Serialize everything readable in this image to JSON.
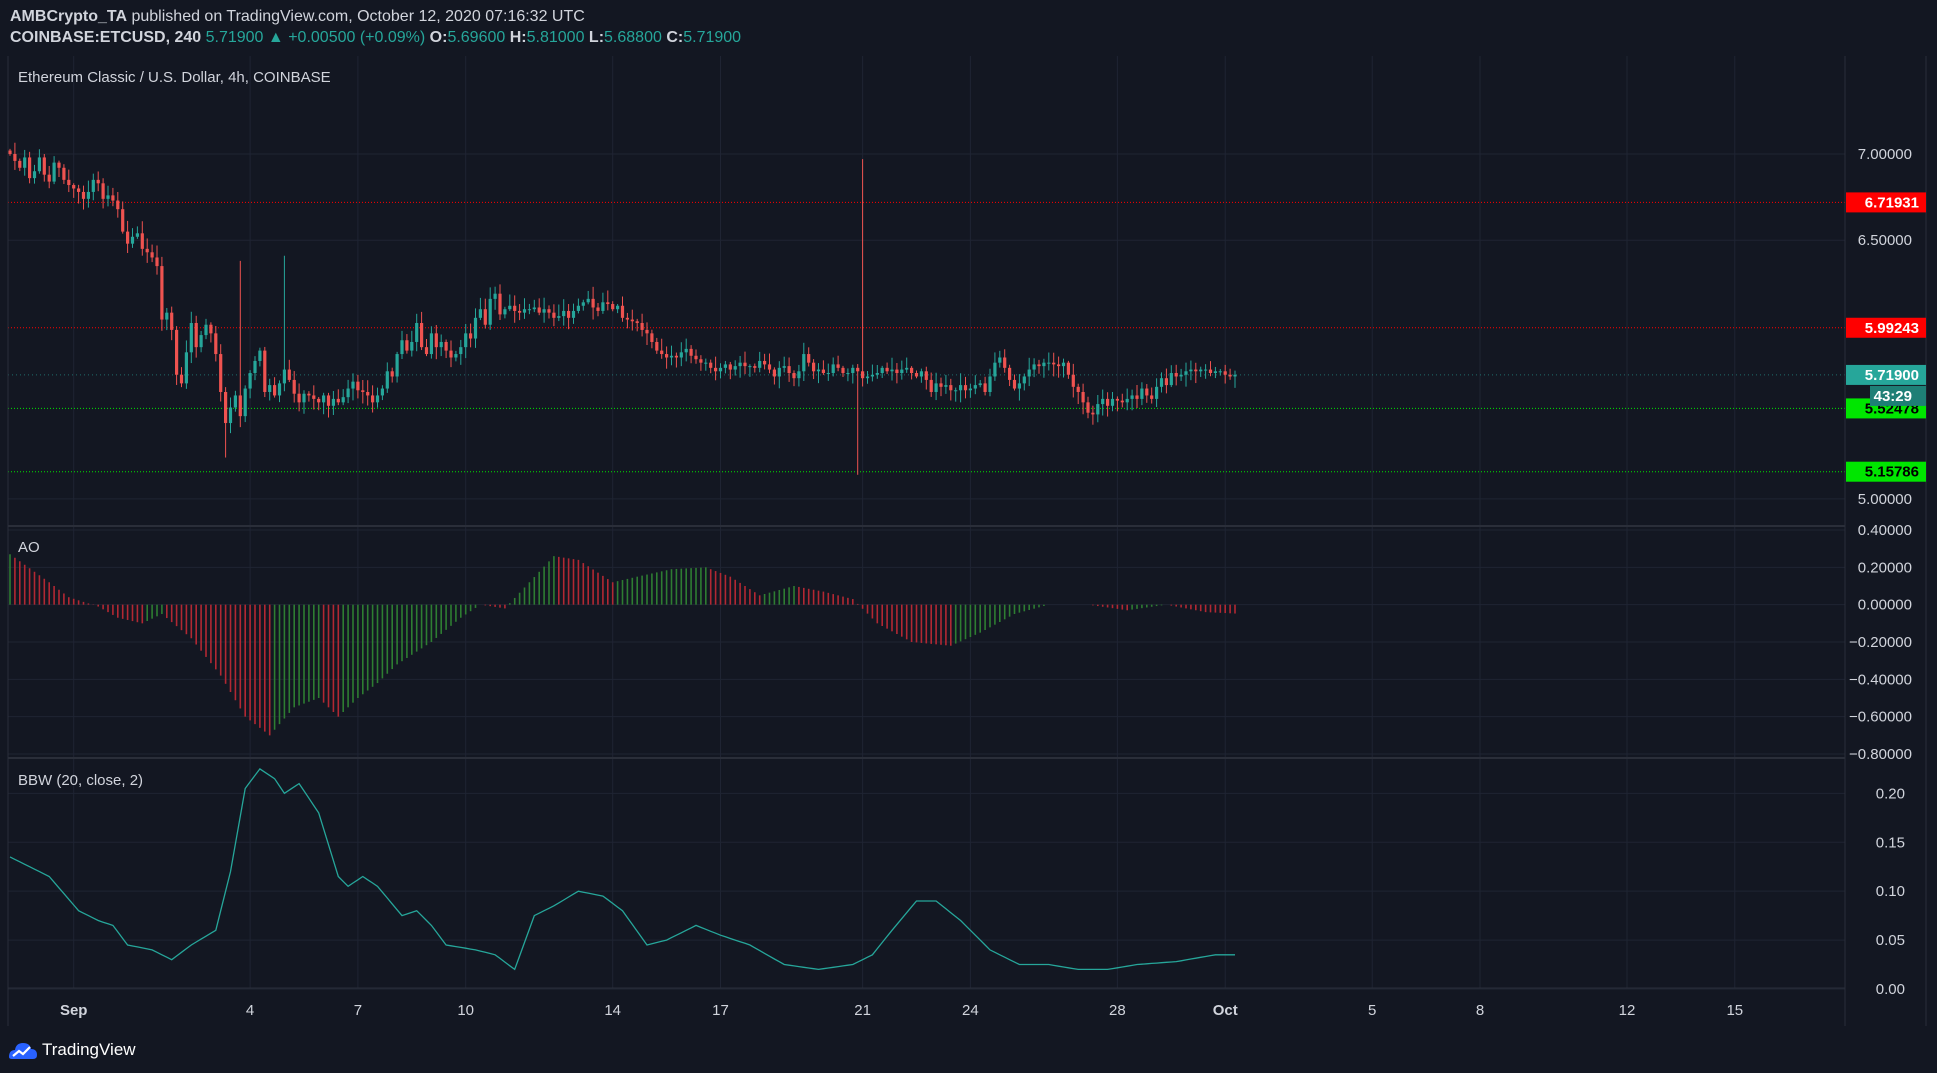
{
  "header": {
    "author": "AMBCrypto_TA",
    "published_text": "published on TradingView.com, October 12, 2020 07:16:32 UTC",
    "symbol": "COINBASE:ETCUSD, 240",
    "last_price": "5.71900",
    "arrow": "▲",
    "change": "+0.00500 (+0.09%)",
    "open_label": "O:",
    "open": "5.69600",
    "high_label": "H:",
    "high": "5.81000",
    "low_label": "L:",
    "low": "5.68800",
    "close_label": "C:",
    "close": "5.71900"
  },
  "footer": {
    "brand": "TradingView",
    "logo_icon": "tradingview-logo-icon"
  },
  "colors": {
    "background": "#131722",
    "up": "#26a69a",
    "down": "#ef5350",
    "ao_up": "#2e7d32",
    "ao_down": "#b22833",
    "bbw_line": "#26a69a",
    "resistance": "#ff0000",
    "support": "#00e600"
  },
  "chart_data": [
    {
      "type": "candlestick",
      "title": "Ethereum Classic / U.S. Dollar, 4h, COINBASE",
      "x_tick_labels": [
        "Sep",
        "4",
        "7",
        "10",
        "14",
        "17",
        "21",
        "24",
        "28",
        "Oct",
        "5",
        "8",
        "12",
        "15"
      ],
      "x_tick_bar_index": [
        13,
        49,
        71,
        93,
        123,
        145,
        174,
        196,
        226,
        248,
        278,
        300,
        330,
        352
      ],
      "ylim": [
        4.93,
        7.4
      ],
      "y_ticks": [
        5.0,
        6.5,
        7.0
      ],
      "y_tick_labels": [
        "5.00000",
        "6.50000",
        "7.00000"
      ],
      "grid": true,
      "closes": [
        7.0,
        6.96,
        6.92,
        6.98,
        6.86,
        6.9,
        6.98,
        6.88,
        6.84,
        6.95,
        6.92,
        6.85,
        6.82,
        6.8,
        6.78,
        6.74,
        6.78,
        6.85,
        6.83,
        6.74,
        6.76,
        6.73,
        6.68,
        6.55,
        6.48,
        6.52,
        6.54,
        6.45,
        6.43,
        6.4,
        6.35,
        6.04,
        6.08,
        5.98,
        5.72,
        5.67,
        5.85,
        6.02,
        5.88,
        5.95,
        6.01,
        5.96,
        5.84,
        5.62,
        5.44,
        5.53,
        5.6,
        5.48,
        5.64,
        5.73,
        5.8,
        5.86,
        5.62,
        5.66,
        5.6,
        5.67,
        5.75,
        5.69,
        5.61,
        5.56,
        5.61,
        5.6,
        5.58,
        5.56,
        5.6,
        5.54,
        5.58,
        5.56,
        5.59,
        5.64,
        5.68,
        5.63,
        5.62,
        5.6,
        5.56,
        5.6,
        5.64,
        5.74,
        5.71,
        5.84,
        5.92,
        5.86,
        5.91,
        6.02,
        5.88,
        5.84,
        5.96,
        5.88,
        5.91,
        5.86,
        5.82,
        5.84,
        5.88,
        5.96,
        5.93,
        6.05,
        6.1,
        6.01,
        6.16,
        6.19,
        6.07,
        6.1,
        6.12,
        6.09,
        6.08,
        6.1,
        6.1,
        6.11,
        6.08,
        6.1,
        6.08,
        6.05,
        6.06,
        6.09,
        6.05,
        6.09,
        6.12,
        6.14,
        6.16,
        6.11,
        6.09,
        6.14,
        6.13,
        6.1,
        6.12,
        6.05,
        6.04,
        6.03,
        6.02,
        5.98,
        5.96,
        5.91,
        5.86,
        5.84,
        5.82,
        5.83,
        5.82,
        5.85,
        5.87,
        5.83,
        5.81,
        5.79,
        5.79,
        5.76,
        5.74,
        5.76,
        5.78,
        5.75,
        5.77,
        5.79,
        5.77,
        5.77,
        5.76,
        5.8,
        5.78,
        5.75,
        5.71,
        5.76,
        5.77,
        5.73,
        5.7,
        5.74,
        5.84,
        5.79,
        5.74,
        5.75,
        5.73,
        5.73,
        5.78,
        5.76,
        5.73,
        5.73,
        5.76,
        5.74,
        5.7,
        5.71,
        5.72,
        5.73,
        5.76,
        5.74,
        5.75,
        5.73,
        5.75,
        5.76,
        5.73,
        5.71,
        5.74,
        5.69,
        5.62,
        5.67,
        5.65,
        5.66,
        5.63,
        5.63,
        5.66,
        5.63,
        5.64,
        5.66,
        5.67,
        5.62,
        5.71,
        5.79,
        5.82,
        5.76,
        5.69,
        5.64,
        5.67,
        5.71,
        5.75,
        5.78,
        5.77,
        5.79,
        5.79,
        5.78,
        5.77,
        5.79,
        5.72,
        5.65,
        5.62,
        5.56,
        5.5,
        5.49,
        5.55,
        5.58,
        5.54,
        5.58,
        5.57,
        5.56,
        5.58,
        5.6,
        5.58,
        5.64,
        5.6,
        5.58,
        5.65,
        5.7,
        5.66,
        5.73,
        5.71,
        5.72,
        5.74,
        5.75,
        5.74,
        5.75,
        5.75,
        5.73,
        5.74,
        5.74,
        5.72,
        5.71,
        5.72
      ],
      "last_price_tag": "5.71900",
      "countdown": "43:29",
      "lines": [
        {
          "value": 6.71931,
          "label": "6.71931",
          "kind": "resistance"
        },
        {
          "value": 5.99243,
          "label": "5.99243",
          "kind": "resistance"
        },
        {
          "value": 5.52478,
          "label": "5.52478",
          "kind": "support"
        },
        {
          "value": 5.15786,
          "label": "5.15786",
          "kind": "support"
        }
      ]
    },
    {
      "type": "bar",
      "title": "AO",
      "ylim": [
        -0.8,
        0.4
      ],
      "y_ticks": [
        -0.8,
        -0.6,
        -0.4,
        -0.2,
        0.0,
        0.2,
        0.4
      ],
      "y_tick_labels": [
        "−0.80000",
        "−0.60000",
        "−0.40000",
        "−0.20000",
        "0.00000",
        "0.20000",
        "0.40000"
      ],
      "keypoints": [
        [
          0,
          0.27
        ],
        [
          8,
          0.12
        ],
        [
          12,
          0.04
        ],
        [
          18,
          -0.01
        ],
        [
          22,
          -0.07
        ],
        [
          27,
          -0.1
        ],
        [
          31,
          -0.05
        ],
        [
          37,
          -0.18
        ],
        [
          43,
          -0.38
        ],
        [
          48,
          -0.6
        ],
        [
          53,
          -0.7
        ],
        [
          58,
          -0.55
        ],
        [
          63,
          -0.5
        ],
        [
          67,
          -0.6
        ],
        [
          71,
          -0.5
        ],
        [
          75,
          -0.42
        ],
        [
          79,
          -0.32
        ],
        [
          86,
          -0.2
        ],
        [
          92,
          -0.07
        ],
        [
          96,
          0.0
        ],
        [
          101,
          -0.02
        ],
        [
          106,
          0.12
        ],
        [
          111,
          0.26
        ],
        [
          116,
          0.24
        ],
        [
          123,
          0.12
        ],
        [
          128,
          0.15
        ],
        [
          135,
          0.19
        ],
        [
          142,
          0.2
        ],
        [
          147,
          0.15
        ],
        [
          153,
          0.05
        ],
        [
          160,
          0.1
        ],
        [
          166,
          0.07
        ],
        [
          172,
          0.03
        ],
        [
          177,
          -0.1
        ],
        [
          184,
          -0.2
        ],
        [
          192,
          -0.22
        ],
        [
          198,
          -0.15
        ],
        [
          205,
          -0.05
        ],
        [
          212,
          0.0
        ],
        [
          220,
          0.0
        ],
        [
          228,
          -0.03
        ],
        [
          236,
          0.0
        ],
        [
          244,
          -0.04
        ],
        [
          252,
          -0.05
        ],
        [
          260,
          -0.1
        ],
        [
          268,
          -0.05
        ],
        [
          276,
          0.0
        ],
        [
          281,
          0.08
        ],
        [
          286,
          0.05
        ],
        [
          291,
          0.0
        ],
        [
          297,
          -0.13
        ],
        [
          303,
          -0.1
        ],
        [
          310,
          -0.05
        ],
        [
          316,
          0.0
        ],
        [
          322,
          0.06
        ],
        [
          328,
          0.1
        ],
        [
          333,
          0.09
        ]
      ]
    },
    {
      "type": "line",
      "title": "BBW (20, close, 2)",
      "ylim": [
        0.0,
        0.23
      ],
      "y_ticks": [
        0.0,
        0.05,
        0.1,
        0.15,
        0.2
      ],
      "y_tick_labels": [
        "0.00",
        "0.05",
        "0.10",
        "0.15",
        "0.20"
      ],
      "keypoints": [
        [
          0,
          0.135
        ],
        [
          8,
          0.115
        ],
        [
          14,
          0.08
        ],
        [
          18,
          0.07
        ],
        [
          21,
          0.065
        ],
        [
          24,
          0.045
        ],
        [
          29,
          0.04
        ],
        [
          33,
          0.03
        ],
        [
          37,
          0.045
        ],
        [
          42,
          0.06
        ],
        [
          45,
          0.12
        ],
        [
          48,
          0.205
        ],
        [
          51,
          0.225
        ],
        [
          54,
          0.215
        ],
        [
          56,
          0.2
        ],
        [
          59,
          0.21
        ],
        [
          63,
          0.18
        ],
        [
          67,
          0.115
        ],
        [
          69,
          0.105
        ],
        [
          72,
          0.115
        ],
        [
          75,
          0.105
        ],
        [
          80,
          0.075
        ],
        [
          83,
          0.08
        ],
        [
          86,
          0.065
        ],
        [
          89,
          0.045
        ],
        [
          95,
          0.04
        ],
        [
          99,
          0.035
        ],
        [
          103,
          0.02
        ],
        [
          107,
          0.075
        ],
        [
          111,
          0.085
        ],
        [
          116,
          0.1
        ],
        [
          121,
          0.095
        ],
        [
          125,
          0.08
        ],
        [
          130,
          0.045
        ],
        [
          134,
          0.05
        ],
        [
          140,
          0.065
        ],
        [
          145,
          0.055
        ],
        [
          151,
          0.045
        ],
        [
          158,
          0.025
        ],
        [
          165,
          0.02
        ],
        [
          172,
          0.025
        ],
        [
          176,
          0.035
        ],
        [
          180,
          0.06
        ],
        [
          185,
          0.09
        ],
        [
          189,
          0.09
        ],
        [
          194,
          0.07
        ],
        [
          200,
          0.04
        ],
        [
          206,
          0.025
        ],
        [
          212,
          0.025
        ],
        [
          218,
          0.02
        ],
        [
          224,
          0.02
        ],
        [
          230,
          0.025
        ],
        [
          238,
          0.028
        ],
        [
          246,
          0.035
        ],
        [
          252,
          0.035
        ],
        [
          257,
          0.02
        ],
        [
          262,
          0.035
        ],
        [
          270,
          0.04
        ],
        [
          276,
          0.045
        ],
        [
          282,
          0.05
        ],
        [
          287,
          0.045
        ],
        [
          292,
          0.05
        ],
        [
          296,
          0.065
        ],
        [
          302,
          0.08
        ],
        [
          308,
          0.07
        ],
        [
          312,
          0.06
        ],
        [
          316,
          0.04
        ],
        [
          322,
          0.05
        ],
        [
          328,
          0.05
        ],
        [
          333,
          0.045
        ]
      ]
    }
  ]
}
